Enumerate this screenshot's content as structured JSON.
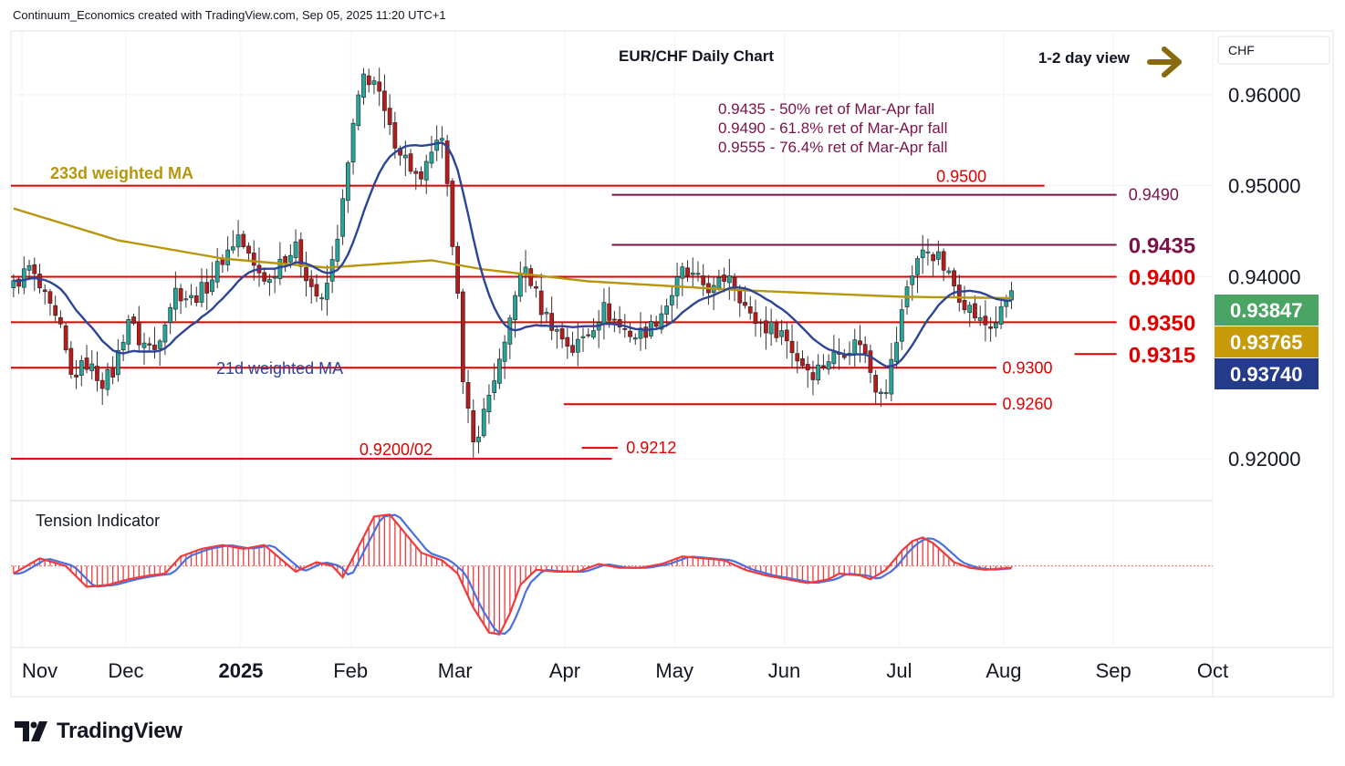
{
  "header": {
    "credit": "Continuum_Economics created with TradingView.com, Sep 05, 2025 11:20 UTC+1"
  },
  "brand": {
    "name": "TradingView",
    "logo_icon": "tradingview-logo-icon"
  },
  "colors": {
    "level_line": "#e00000",
    "fib_line": "#7b1349",
    "fib_text": "#7b1349",
    "ma233": "#b8960c",
    "ma21": "#2c4596",
    "candle_up": "#26a69a",
    "candle_down": "#b71c1c",
    "tension_fast": "#ef3b3b",
    "tension_slow": "#4a6fe0",
    "price_badge_last": "#4aa564",
    "price_badge_ma233": "#c79a0a",
    "price_badge_ma21": "#243b8c",
    "arrow": "#8a6a10"
  },
  "chart_data": {
    "type": "candlestick",
    "title": "EUR/CHF Daily Chart",
    "view_label": "1-2 day view",
    "view_arrow_icon": "right-arrow-icon",
    "currency": "CHF",
    "y_range": [
      0.9155,
      0.967
    ],
    "y_ticks": [
      "0.96000",
      "0.95000",
      "0.94000",
      "0.92000"
    ],
    "y_tick_values": [
      0.96,
      0.95,
      0.94,
      0.92
    ],
    "x_labels": [
      "Nov",
      "Dec",
      "2025",
      "Feb",
      "Mar",
      "Apr",
      "May",
      "Jun",
      "Jul",
      "Aug",
      "Sep",
      "Oct"
    ],
    "fib_notes": [
      "0.9435 - 50% ret of Mar-Apr fall",
      "0.9490 - 61.8% ret of Mar-Apr fall",
      "0.9555 - 76.4% ret of Mar-Apr fall"
    ],
    "ma_labels": {
      "ma233": "233d weighted MA",
      "ma21": "21d weighted MA"
    },
    "levels": [
      {
        "value": 0.95,
        "label": "0.9500",
        "kind": "resistance",
        "x_start": 0.0,
        "x_end": 0.86,
        "label_at": 0.77,
        "size": "medium"
      },
      {
        "value": 0.949,
        "label": "0.9490",
        "kind": "fib",
        "x_start": 0.5,
        "x_end": 0.92,
        "label_at": 0.93,
        "size": "medium"
      },
      {
        "value": 0.9435,
        "label": "0.9435",
        "kind": "fib",
        "x_start": 0.5,
        "x_end": 0.92,
        "label_at": 0.93,
        "size": "large"
      },
      {
        "value": 0.94,
        "label": "0.9400",
        "kind": "resistance",
        "x_start": 0.0,
        "x_end": 0.92,
        "label_at": 0.93,
        "size": "large"
      },
      {
        "value": 0.935,
        "label": "0.9350",
        "kind": "support",
        "x_start": 0.0,
        "x_end": 0.92,
        "label_at": 0.93,
        "size": "large"
      },
      {
        "value": 0.9315,
        "label": "0.9315",
        "kind": "support",
        "x_start": 0.885,
        "x_end": 0.92,
        "label_at": 0.93,
        "size": "large"
      },
      {
        "value": 0.93,
        "label": "0.9300",
        "kind": "support",
        "x_start": 0.0,
        "x_end": 0.82,
        "label_at": 0.825,
        "size": "medium"
      },
      {
        "value": 0.926,
        "label": "0.9260",
        "kind": "support",
        "x_start": 0.46,
        "x_end": 0.82,
        "label_at": 0.825,
        "size": "medium"
      },
      {
        "value": 0.9212,
        "label": "0.9212",
        "kind": "support",
        "x_start": 0.475,
        "x_end": 0.505,
        "label_at": 0.512,
        "size": "medium"
      },
      {
        "value": 0.92,
        "label": "0.9200/02",
        "kind": "support",
        "x_start": 0.0,
        "x_end": 0.5,
        "label_at": 0.29,
        "size": "medium"
      }
    ],
    "price_badges": [
      {
        "label": "0.93847",
        "value": 0.93847,
        "kind": "last"
      },
      {
        "label": "0.93765",
        "value": 0.93765,
        "kind": "ma233"
      },
      {
        "label": "0.93740",
        "value": 0.9374,
        "kind": "ma21"
      }
    ],
    "anchors": [
      [
        0,
        0.939
      ],
      [
        3,
        0.941
      ],
      [
        6,
        0.9375
      ],
      [
        9,
        0.934
      ],
      [
        11,
        0.929
      ],
      [
        14,
        0.9305
      ],
      [
        17,
        0.9285
      ],
      [
        19,
        0.9295
      ],
      [
        22,
        0.9355
      ],
      [
        24,
        0.933
      ],
      [
        27,
        0.932
      ],
      [
        29,
        0.9355
      ],
      [
        31,
        0.9385
      ],
      [
        34,
        0.9375
      ],
      [
        37,
        0.939
      ],
      [
        40,
        0.942
      ],
      [
        43,
        0.9445
      ],
      [
        46,
        0.941
      ],
      [
        49,
        0.9395
      ],
      [
        51,
        0.942
      ],
      [
        54,
        0.943
      ],
      [
        57,
        0.939
      ],
      [
        59,
        0.937
      ],
      [
        61,
        0.9415
      ],
      [
        63,
        0.948
      ],
      [
        65,
        0.9565
      ],
      [
        67,
        0.962
      ],
      [
        69,
        0.9615
      ],
      [
        72,
        0.956
      ],
      [
        74,
        0.954
      ],
      [
        76,
        0.952
      ],
      [
        78,
        0.95
      ],
      [
        80,
        0.954
      ],
      [
        82,
        0.9545
      ],
      [
        85,
        0.939
      ],
      [
        86,
        0.928
      ],
      [
        88,
        0.9215
      ],
      [
        90,
        0.925
      ],
      [
        92,
        0.929
      ],
      [
        94,
        0.932
      ],
      [
        96,
        0.9385
      ],
      [
        98,
        0.941
      ],
      [
        101,
        0.9365
      ],
      [
        104,
        0.934
      ],
      [
        107,
        0.932
      ],
      [
        110,
        0.934
      ],
      [
        113,
        0.9365
      ],
      [
        116,
        0.9345
      ],
      [
        119,
        0.9335
      ],
      [
        122,
        0.9345
      ],
      [
        125,
        0.937
      ],
      [
        128,
        0.9405
      ],
      [
        131,
        0.9395
      ],
      [
        134,
        0.9385
      ],
      [
        137,
        0.9405
      ],
      [
        139,
        0.938
      ],
      [
        141,
        0.9355
      ],
      [
        144,
        0.9345
      ],
      [
        147,
        0.934
      ],
      [
        150,
        0.931
      ],
      [
        153,
        0.9295
      ],
      [
        156,
        0.931
      ],
      [
        159,
        0.932
      ],
      [
        162,
        0.933
      ],
      [
        165,
        0.928
      ],
      [
        167,
        0.928
      ],
      [
        169,
        0.933
      ],
      [
        171,
        0.939
      ],
      [
        173,
        0.942
      ],
      [
        175,
        0.943
      ],
      [
        177,
        0.942
      ],
      [
        179,
        0.94
      ],
      [
        181,
        0.938
      ],
      [
        183,
        0.9365
      ],
      [
        185,
        0.935
      ],
      [
        187,
        0.9345
      ],
      [
        189,
        0.936
      ],
      [
        191,
        0.93847
      ]
    ]
  },
  "tension": {
    "title": "Tension Indicator",
    "anchors": [
      [
        0,
        -8
      ],
      [
        5,
        8
      ],
      [
        10,
        0
      ],
      [
        14,
        -22
      ],
      [
        18,
        -20
      ],
      [
        22,
        -14
      ],
      [
        26,
        -10
      ],
      [
        29,
        -8
      ],
      [
        32,
        10
      ],
      [
        36,
        18
      ],
      [
        40,
        22
      ],
      [
        44,
        18
      ],
      [
        48,
        22
      ],
      [
        51,
        8
      ],
      [
        54,
        -6
      ],
      [
        58,
        4
      ],
      [
        61,
        0
      ],
      [
        63,
        -12
      ],
      [
        66,
        20
      ],
      [
        69,
        52
      ],
      [
        72,
        54
      ],
      [
        75,
        34
      ],
      [
        78,
        14
      ],
      [
        82,
        6
      ],
      [
        85,
        -8
      ],
      [
        88,
        -44
      ],
      [
        91,
        -70
      ],
      [
        93,
        -72
      ],
      [
        95,
        -50
      ],
      [
        97,
        -20
      ],
      [
        100,
        -4
      ],
      [
        104,
        -6
      ],
      [
        108,
        -6
      ],
      [
        112,
        2
      ],
      [
        116,
        -2
      ],
      [
        120,
        -2
      ],
      [
        124,
        2
      ],
      [
        128,
        10
      ],
      [
        132,
        8
      ],
      [
        136,
        6
      ],
      [
        140,
        -4
      ],
      [
        144,
        -10
      ],
      [
        148,
        -14
      ],
      [
        152,
        -18
      ],
      [
        156,
        -14
      ],
      [
        158,
        -8
      ],
      [
        162,
        -10
      ],
      [
        164,
        -14
      ],
      [
        167,
        -4
      ],
      [
        170,
        16
      ],
      [
        172,
        26
      ],
      [
        174,
        30
      ],
      [
        176,
        24
      ],
      [
        178,
        14
      ],
      [
        180,
        4
      ],
      [
        183,
        -2
      ],
      [
        186,
        -4
      ],
      [
        191,
        -2
      ]
    ],
    "y_range": [
      -80,
      62
    ]
  }
}
